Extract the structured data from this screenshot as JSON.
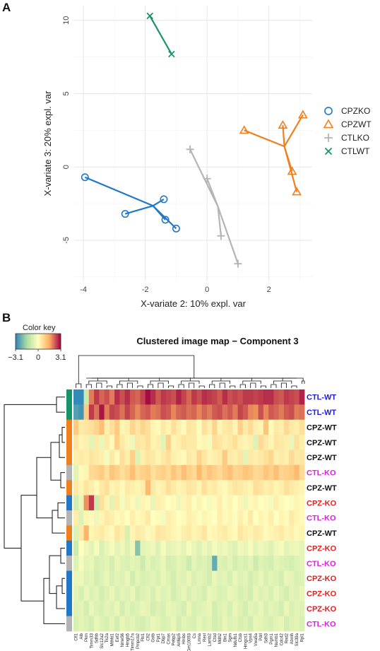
{
  "panel_a_letter": "A",
  "panel_b_letter": "B",
  "chart_data": [
    {
      "type": "scatter",
      "xlabel": "X-variate 2: 10% expl. var",
      "ylabel": "X-variate 3: 20% expl. var",
      "xlim": [
        -4.3,
        3.4
      ],
      "ylim": [
        -7.8,
        11
      ],
      "xticks": [
        -4,
        -2,
        0,
        2
      ],
      "yticks": [
        10,
        5,
        0,
        -5
      ],
      "ytick_labels": [
        "10",
        "5",
        "0",
        "-5"
      ],
      "grid": true,
      "legend_position": "right",
      "series": [
        {
          "name": "CPZKO",
          "marker": "circle",
          "color": "#1f78c8",
          "centroid": [
            -1.75,
            -2.65
          ],
          "points": [
            [
              -3.95,
              -0.7
            ],
            [
              -1.4,
              -2.2
            ],
            [
              -2.65,
              -3.2
            ],
            [
              -1.35,
              -3.6
            ],
            [
              -1.0,
              -4.2
            ]
          ]
        },
        {
          "name": "CPZWT",
          "marker": "triangle",
          "color": "#f07f1e",
          "centroid": [
            2.5,
            1.4
          ],
          "points": [
            [
              1.2,
              2.5
            ],
            [
              2.45,
              2.85
            ],
            [
              3.1,
              3.55
            ],
            [
              2.75,
              -0.3
            ],
            [
              2.9,
              -1.7
            ]
          ]
        },
        {
          "name": "CTLKO",
          "marker": "plus",
          "color": "#b4b4b4",
          "centroid": [
            0.35,
            -2.7
          ],
          "points": [
            [
              -0.55,
              1.2
            ],
            [
              0.0,
              -0.8
            ],
            [
              0.45,
              -4.7
            ],
            [
              1.0,
              -6.6
            ]
          ]
        },
        {
          "name": "CTLWT",
          "marker": "x",
          "color": "#17936b",
          "centroid": [
            -1.5,
            9.0
          ],
          "points": [
            [
              -1.85,
              10.3
            ],
            [
              -1.15,
              7.7
            ]
          ]
        }
      ]
    },
    {
      "type": "heatmap",
      "title": "Clustered image map − Component 3",
      "color_key": {
        "title": "Color key",
        "min_label": "−3.1",
        "mid_label": "0",
        "max_label": "3.1"
      },
      "row_labels": [
        "CTL-WT",
        "CTL-WT",
        "CPZ-WT",
        "CPZ-WT",
        "CPZ-WT",
        "CTL-KO",
        "CPZ-WT",
        "CPZ-KO",
        "CTL-KO",
        "CPZ-WT",
        "CPZ-KO",
        "CTL-KO",
        "CPZ-KO",
        "CPZ-KO",
        "CPZ-KO",
        "CTL-KO"
      ],
      "row_label_colors": [
        "#1f1fd0",
        "#1f1fd0",
        "#111111",
        "#111111",
        "#111111",
        "#e020e0",
        "#111111",
        "#e01f1f",
        "#e020e0",
        "#111111",
        "#e01f1f",
        "#e020e0",
        "#e01f1f",
        "#e01f1f",
        "#e01f1f",
        "#e020e0"
      ],
      "row_side_colors": [
        "#17936b",
        "#17936b",
        "#f07f1e",
        "#f07f1e",
        "#f07f1e",
        "#b4b4b4",
        "#f07f1e",
        "#1f78c8",
        "#b4b4b4",
        "#f07f1e",
        "#1f78c8",
        "#b4b4b4",
        "#1f78c8",
        "#1f78c8",
        "#1f78c8",
        "#b4b4b4"
      ],
      "col_labels": [
        "Cfl1",
        "Alb",
        "Pkm",
        "Timm33",
        "Sdhb",
        "Slc12a2",
        "Tk2a",
        "Mthfd1",
        "Eef2",
        "Nme56",
        "Hmgb5",
        "Timm17a",
        "Pmpcb2",
        "Fhl1",
        "Cfl2",
        "Gstb",
        "Ppt1",
        "Dbp7",
        "Cmas",
        "Pebp2",
        "Arl6ip5",
        "Hmbs",
        "Gm10093",
        "Cs",
        "Lmna",
        "Rexl",
        "Lamb2",
        "Ctsd",
        "Mdh2",
        "Bin1",
        "Sgrn",
        "Ndufb1",
        "Ctsb",
        "Hmgcs1",
        "Vps4",
        "Vwa5a",
        "Pdrl",
        "Sdh3",
        "Pgm1",
        "Numb1",
        "Cdc42",
        "Rnd2",
        "Atxnh",
        "Slc39a",
        "Rpl1"
      ],
      "values": [
        [
          -3,
          -3,
          -1,
          2,
          2.6,
          2.2,
          2.4,
          2,
          2.7,
          2.4,
          2.7,
          2.3,
          2.2,
          2.5,
          3,
          2.7,
          2.3,
          2.6,
          2.5,
          2.4,
          2.8,
          2.5,
          2.2,
          2.6,
          2.4,
          2.7,
          2.6,
          2.5,
          2.3,
          2.7,
          2.4,
          2.5,
          2.4,
          2.6,
          2.6,
          2.5,
          2.6,
          2.7,
          2.7,
          2.4,
          2.3,
          2.6,
          2.5,
          2.4,
          2.8
        ],
        [
          -2.6,
          -2.8,
          1,
          2.6,
          2.1,
          2.9,
          2,
          2.5,
          2.4,
          2.1,
          2.5,
          2.2,
          1.9,
          2.2,
          2.3,
          2,
          2.1,
          2.4,
          2.3,
          1.9,
          2.2,
          2.3,
          2.1,
          2.2,
          1.9,
          2.2,
          2,
          2.3,
          2.4,
          2.1,
          2.3,
          2,
          2.5,
          2.3,
          1.9,
          1.8,
          2.4,
          1.9,
          2.3,
          2.2,
          2,
          2.3,
          2.4,
          2,
          2.1
        ],
        [
          1,
          0.4,
          0.5,
          0.6,
          0.8,
          1.2,
          0.3,
          0.6,
          1,
          0.2,
          0.3,
          0.8,
          0.5,
          0.8,
          0.6,
          0.2,
          0.1,
          0.4,
          0.2,
          0.6,
          0.3,
          0.1,
          0.5,
          0.4,
          -0.1,
          0.6,
          0.3,
          0.8,
          0.2,
          0.4,
          0.5,
          0.2,
          0.9,
          0.4,
          0.7,
          0.3,
          0.2,
          1.1,
          0.1,
          0.4,
          0.3,
          0.7,
          0.4,
          0.3,
          0.6
        ],
        [
          0.5,
          0.2,
          0.3,
          -0.5,
          0.4,
          -0.4,
          0.4,
          0.1,
          0.9,
          0.4,
          0.2,
          -0.3,
          0.5,
          0.4,
          0.6,
          0.2,
          0.3,
          -0.5,
          0.9,
          0.2,
          0.3,
          0.5,
          0.4,
          0.4,
          0.1,
          0.2,
          -0.2,
          0.6,
          0.5,
          0.3,
          0.4,
          0.6,
          0.3,
          0.2,
          0.3,
          -0.6,
          0.7,
          0.4,
          0.2,
          0.5,
          0.4,
          0.3,
          -0.4,
          0.6,
          0.3
        ],
        [
          0.3,
          0.4,
          0.3,
          0.5,
          0.4,
          0.3,
          -0.2,
          0.4,
          0.1,
          0.6,
          0.3,
          0.9,
          -0.6,
          0.3,
          0.5,
          0.4,
          0.2,
          0.4,
          0.6,
          0.3,
          0.2,
          0.1,
          0.4,
          0.3,
          0.8,
          0.5,
          0.2,
          0.3,
          0.4,
          1,
          0.4,
          0.3,
          0.5,
          -0.5,
          0.4,
          0.3,
          0.4,
          0.6,
          0.8,
          0.3,
          0.4,
          0.3,
          0.7,
          0.4,
          0.5
        ],
        [
          -0.5,
          0.1,
          0.2,
          0.7,
          0.8,
          1,
          0.6,
          1.1,
          0.9,
          0.6,
          0.8,
          1.2,
          0.7,
          0.9,
          1,
          0.6,
          0.8,
          0.9,
          0.7,
          1.1,
          0.8,
          1.2,
          0.9,
          0.7,
          1.3,
          0.8,
          1.1,
          0.9,
          0.7,
          1,
          1.2,
          0.8,
          0.9,
          1.1,
          1,
          0.7,
          0.8,
          1.1,
          0.9,
          1.2,
          0.8,
          0.9,
          1,
          1.3,
          0.7
        ],
        [
          0.4,
          0.2,
          0.5,
          0.3,
          0.1,
          0.4,
          0.6,
          0.2,
          0.3,
          0.1,
          0.4,
          0.3,
          0.2,
          0.3,
          1.3,
          0.4,
          0.2,
          0.3,
          0.6,
          0.4,
          0.2,
          0.3,
          0.5,
          0.4,
          0.2,
          0.6,
          0.3,
          0.4,
          0.2,
          0.1,
          0.3,
          0.5,
          0.4,
          0.3,
          0.2,
          0.6,
          0.5,
          0.3,
          0.4,
          0.2,
          0.3,
          0.6,
          0.4,
          0.3,
          0.2
        ],
        [
          -0.8,
          -0.4,
          1.8,
          2.6,
          -0.9,
          0.6,
          0.2,
          -0.5,
          0.4,
          -0.2,
          0.3,
          0.1,
          -0.3,
          0.2,
          0.1,
          -0.4,
          0.3,
          0.2,
          0,
          0.1,
          -0.3,
          0.2,
          0.3,
          -0.1,
          0.2,
          0,
          -0.2,
          0.1,
          0.3,
          -0.1,
          0.2,
          0,
          0.2,
          -0.3,
          0.1,
          0.2,
          0,
          0.1,
          -0.2,
          0.3,
          0.1,
          0,
          -0.1,
          0.2,
          0.1
        ],
        [
          0.3,
          -0.6,
          0.2,
          0.1,
          -0.3,
          0.2,
          0.4,
          0.3,
          0.1,
          0.2,
          0,
          0.3,
          0.1,
          0.2,
          0.4,
          0,
          0.1,
          -0.2,
          0.3,
          0.2,
          0,
          0.1,
          0.3,
          0.2,
          -0.1,
          0.2,
          0.1,
          0,
          0.3,
          0.1,
          0.2,
          -0.1,
          0.3,
          0.1,
          0.4,
          0,
          0.2,
          0.1,
          0.3,
          0,
          0.2,
          0.1,
          0.4,
          0.2,
          0.1
        ],
        [
          -0.6,
          0.4,
          1.4,
          0.2,
          0.3,
          0.4,
          0.2,
          0.1,
          0.5,
          0.3,
          -0.7,
          0.2,
          0.4,
          0.3,
          0.1,
          0.2,
          0.5,
          0.4,
          0.3,
          0.2,
          0.1,
          0.3,
          0.4,
          0.2,
          0.3,
          0.5,
          0.1,
          0.2,
          0.3,
          0.4,
          0.2,
          0.1,
          0.5,
          0.3,
          0.2,
          0.4,
          0.3,
          0.1,
          0.2,
          0.3,
          0.4,
          0.2,
          0.3,
          0.1,
          0.2
        ],
        [
          -0.9,
          0,
          -0.3,
          -0.5,
          -0.2,
          -0.7,
          -0.4,
          -0.2,
          -0.5,
          -0.3,
          -0.6,
          -0.3,
          -2,
          -0.5,
          -0.4,
          -0.3,
          -0.6,
          -0.2,
          -0.5,
          -0.4,
          -0.3,
          -0.5,
          -0.2,
          -0.4,
          -0.6,
          -0.3,
          -0.5,
          -0.2,
          -0.4,
          -0.3,
          -0.5,
          -0.6,
          -0.3,
          -0.4,
          -0.2,
          -0.5,
          -0.3,
          -0.4,
          -0.6,
          -0.3,
          -0.2,
          -0.5,
          -0.4,
          -0.3,
          -0.5
        ],
        [
          -0.6,
          -0.2,
          -0.5,
          -0.4,
          -0.7,
          -0.6,
          -0.5,
          -0.8,
          -0.4,
          -0.6,
          -0.7,
          -0.5,
          -0.6,
          -0.9,
          -0.5,
          -0.7,
          -0.6,
          -0.4,
          -0.8,
          -0.7,
          -0.5,
          -0.6,
          -0.9,
          -0.5,
          -0.7,
          -0.6,
          -0.8,
          -2.4,
          -0.6,
          -0.7,
          -0.5,
          -0.8,
          -0.6,
          -0.7,
          -0.5,
          -0.9,
          -0.6,
          -0.7,
          -0.8,
          -0.5,
          -0.6,
          -0.7,
          -0.8,
          -0.6,
          -0.5
        ],
        [
          -0.4,
          -0.3,
          -0.6,
          -0.5,
          -0.8,
          -0.6,
          -0.4,
          -0.7,
          -0.5,
          -0.6,
          -0.4,
          -0.8,
          -0.5,
          -0.7,
          -0.6,
          -0.5,
          -0.7,
          -0.4,
          -0.6,
          -0.8,
          -0.5,
          -0.6,
          -0.4,
          -0.7,
          -0.5,
          -0.6,
          -0.8,
          -0.4,
          -0.6,
          -0.5,
          -0.7,
          -0.4,
          -0.6,
          -0.5,
          -0.8,
          -0.6,
          -0.4,
          -0.7,
          -0.5,
          -0.6,
          -0.8,
          -0.4,
          -0.5,
          -0.7,
          -0.6
        ],
        [
          -0.5,
          -0.7,
          -0.4,
          -0.6,
          -0.5,
          -0.8,
          -0.6,
          -0.4,
          -0.7,
          -0.5,
          -0.6,
          -0.4,
          -0.8,
          -0.6,
          -0.5,
          -0.7,
          -0.4,
          -0.6,
          -0.5,
          -0.8,
          -0.6,
          -0.4,
          -0.7,
          -0.5,
          -0.6,
          -0.8,
          -0.4,
          -0.5,
          -0.7,
          -0.6,
          -0.4,
          -0.5,
          -0.7,
          -0.6,
          -0.8,
          -0.4,
          -0.6,
          -0.5,
          -0.7,
          -0.4,
          -0.6,
          -0.8,
          -0.5,
          -0.6,
          -0.4
        ],
        [
          -0.6,
          -0.5,
          -0.8,
          -0.4,
          -0.6,
          -0.7,
          -0.5,
          -0.6,
          -0.4,
          -0.8,
          -0.5,
          -0.7,
          -0.6,
          -0.4,
          -0.5,
          -0.8,
          -0.6,
          -0.7,
          -0.4,
          -0.5,
          -0.6,
          -0.8,
          -0.4,
          -0.7,
          -0.6,
          -0.5,
          -0.4,
          -0.8,
          -0.6,
          -0.5,
          -0.7,
          -0.4,
          -0.6,
          -0.8,
          -0.5,
          -0.6,
          -0.4,
          -0.7,
          -0.5,
          -0.6,
          -0.8,
          -0.4,
          -0.7,
          -0.5,
          -0.6
        ],
        [
          -0.7,
          -0.5,
          -0.6,
          -0.8,
          -0.4,
          -0.6,
          -0.7,
          -0.5,
          -0.8,
          -0.4,
          -0.6,
          -0.5,
          -0.7,
          -0.8,
          -0.6,
          -0.4,
          -0.5,
          -0.7,
          -0.6,
          -0.4,
          -0.8,
          -0.5,
          -0.6,
          -0.7,
          -0.4,
          -0.6,
          -0.5,
          -0.8,
          -0.7,
          -0.4,
          -0.6,
          -0.5,
          -0.7,
          -0.6,
          -0.8,
          -0.4,
          -0.5,
          -0.6,
          -0.7,
          -0.5,
          -0.4,
          -0.8,
          -0.6,
          -0.5,
          -0.7
        ]
      ]
    }
  ]
}
